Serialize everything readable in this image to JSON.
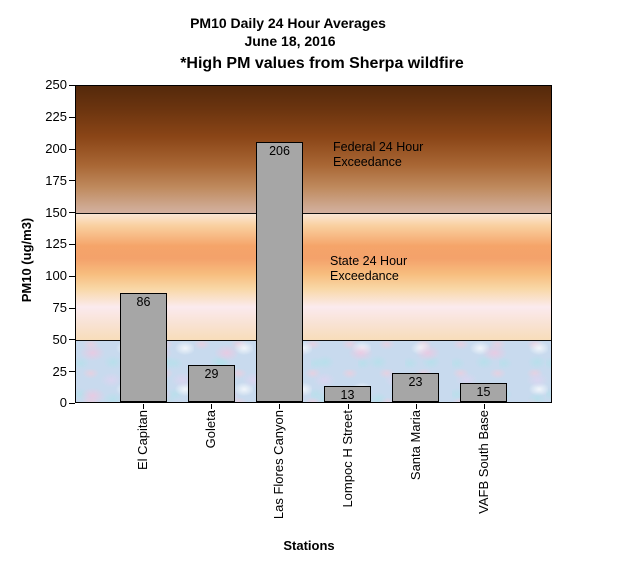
{
  "title": {
    "line1": "PM10 Daily 24 Hour Averages",
    "line2": "June 18, 2016",
    "note": "*High PM values from Sherpa wildfire"
  },
  "axes": {
    "y_title": "PM10 (ug/m3)",
    "x_title": "Stations",
    "y_ticks": [
      "250",
      "225",
      "200",
      "175",
      "150",
      "125",
      "100",
      "75",
      "50",
      "25",
      "0"
    ]
  },
  "annotations": {
    "federal": {
      "line1": "Federal 24 Hour",
      "line2": "Exceedance",
      "threshold": 150
    },
    "state": {
      "line1": "State 24 Hour",
      "line2": "Exceedance",
      "threshold": 50
    }
  },
  "chart_data": {
    "type": "bar",
    "title": "PM10 Daily 24 Hour Averages",
    "subtitle": "June 18, 2016",
    "note": "*High PM values from Sherpa wildfire",
    "categories": [
      "El Capitan",
      "Goleta",
      "Las Flores Canyon",
      "Lompoc H Street",
      "Santa Maria",
      "VAFB South Base"
    ],
    "values": [
      86,
      29,
      206,
      13,
      23,
      15
    ],
    "xlabel": "Stations",
    "ylabel": "PM10 (ug/m3)",
    "ylim": [
      0,
      250
    ],
    "ytick_step": 25,
    "grid": false,
    "legend": false,
    "data_labels": "inside-end",
    "category_label_rotation_deg": 90,
    "thresholds": [
      {
        "label": "Federal 24 Hour Exceedance",
        "value": 150,
        "zone": [
          150,
          250
        ],
        "zone_style": "dark brown gradient"
      },
      {
        "label": "State 24 Hour Exceedance",
        "value": 50,
        "zone": [
          50,
          150
        ],
        "zone_style": "orange gradient"
      }
    ],
    "safe_zone": {
      "range": [
        0,
        50
      ],
      "zone_style": "blue mottled texture"
    }
  },
  "colors": {
    "bar_fill": "#a6a6a6",
    "bar_border": "#000000",
    "zone_brown_top": "#54290b",
    "zone_brown_bottom": "#d3b0a0",
    "zone_orange_mid": "#f5a469",
    "zone_blue_base": "#c8daee",
    "text": "#000000",
    "background": "#ffffff"
  }
}
